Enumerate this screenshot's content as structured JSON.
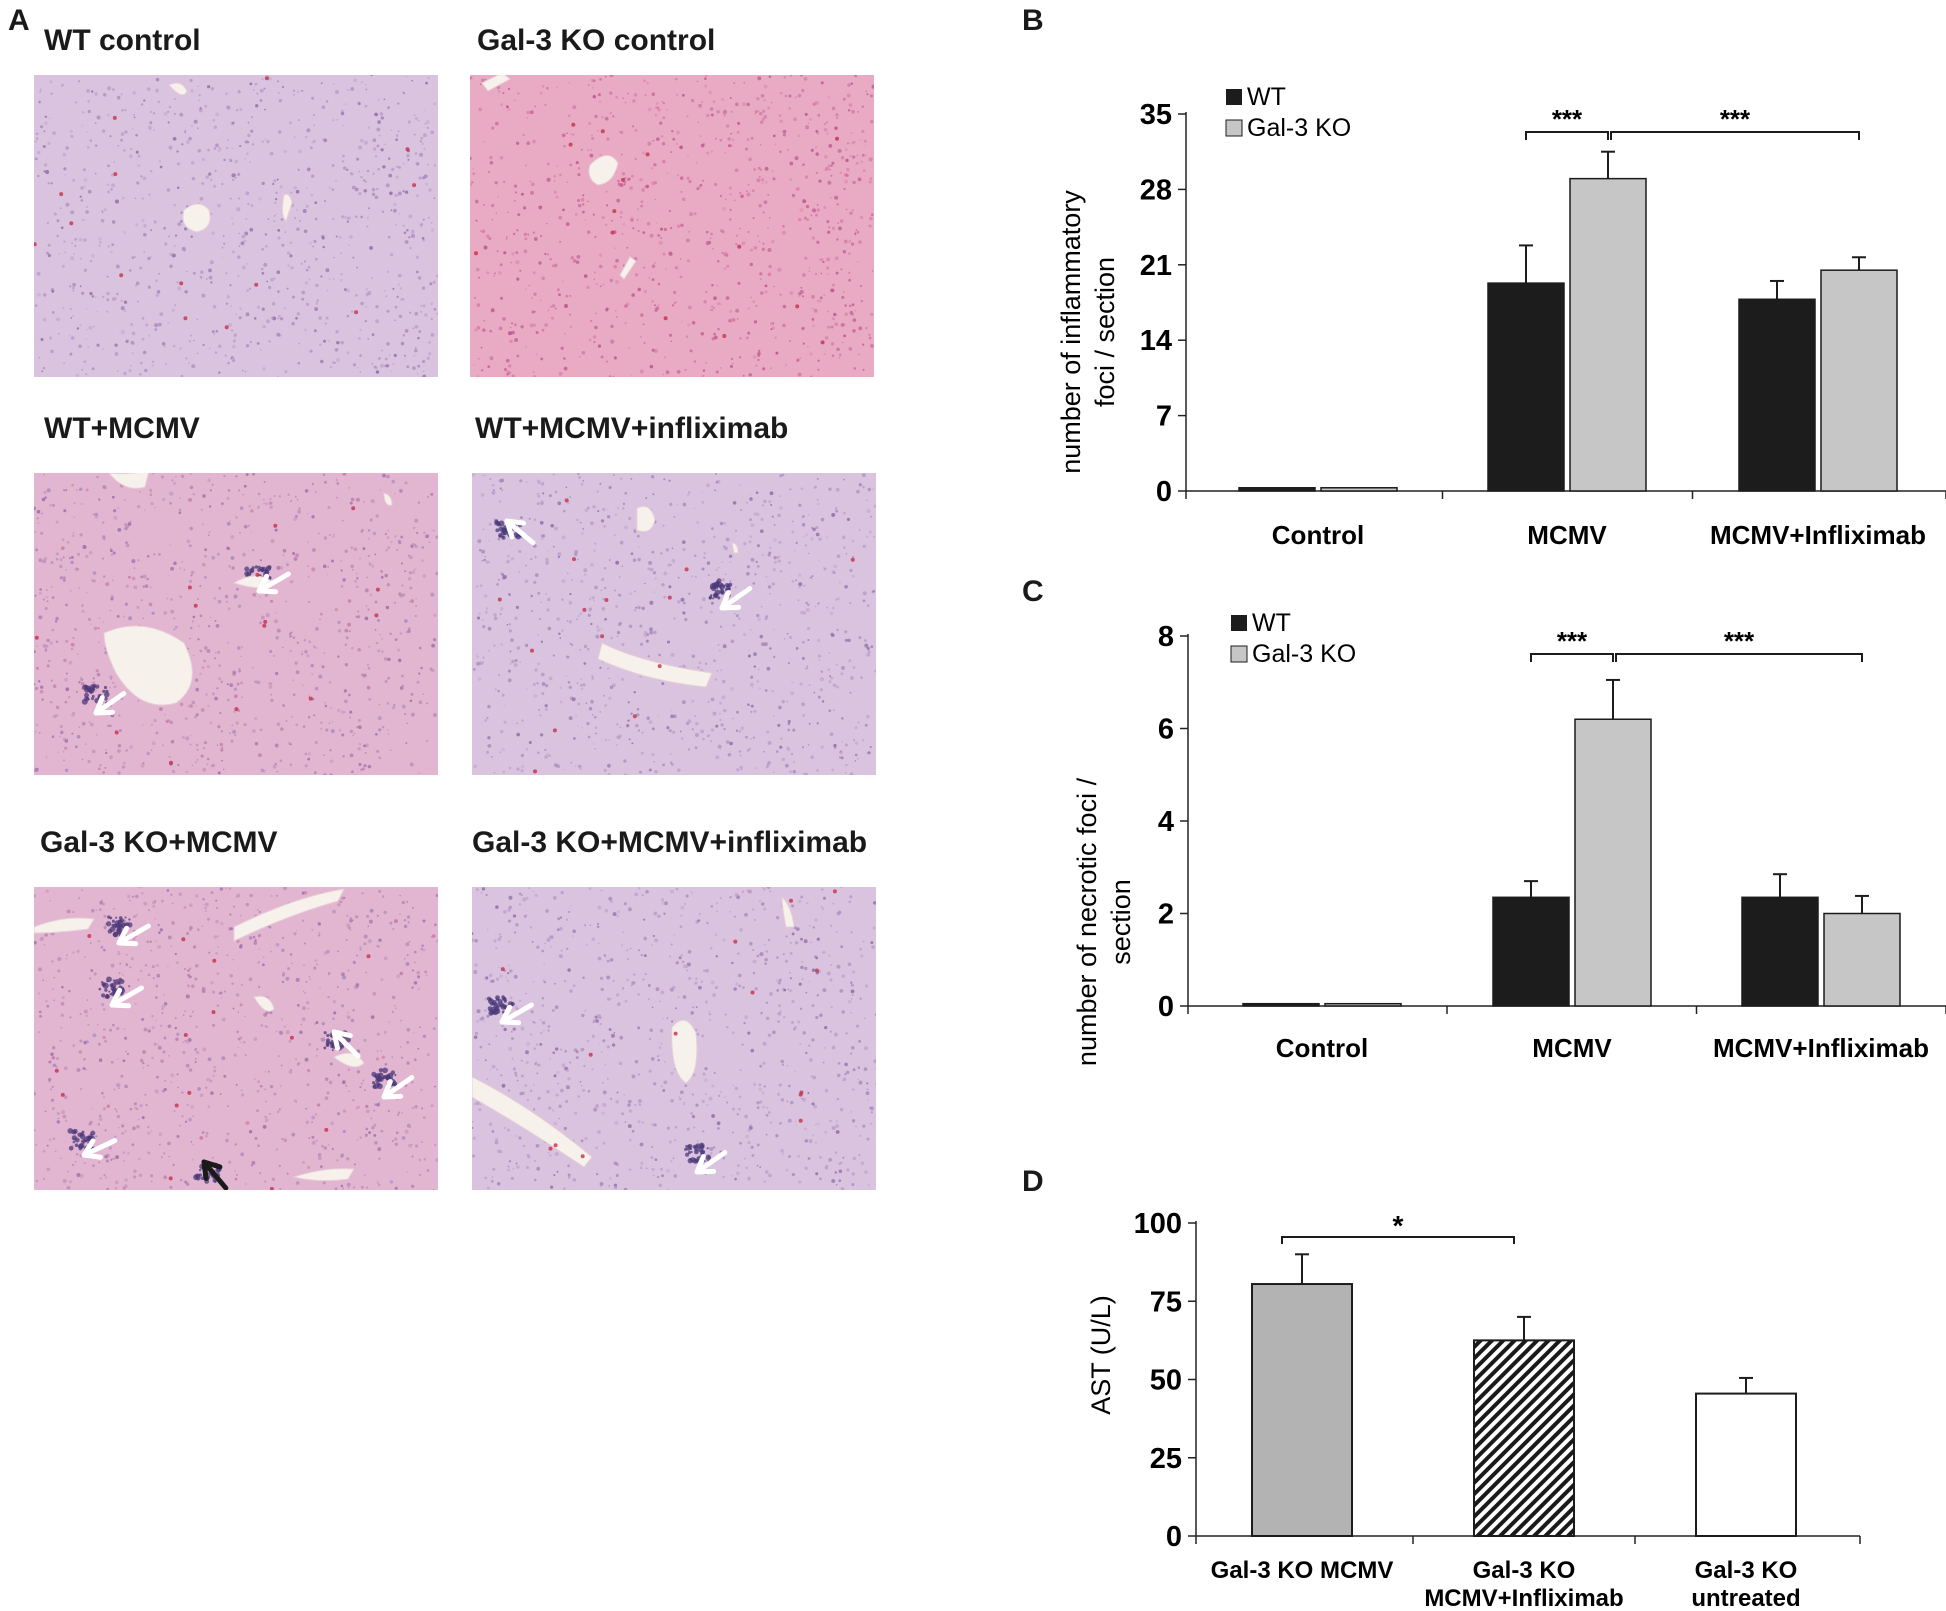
{
  "panels": {
    "A": {
      "letter": "A",
      "images": [
        {
          "title": "WT control",
          "style": "lilac"
        },
        {
          "title": "Gal-3 KO control",
          "style": "pink"
        },
        {
          "title": "WT+MCMV",
          "style": "mixed",
          "white_arrows": 2
        },
        {
          "title": "WT+MCMV+infliximab",
          "style": "lilac",
          "white_arrows": 2
        },
        {
          "title": "Gal-3 KO+MCMV",
          "style": "mixed",
          "white_arrows": 6,
          "black_arrows": 1
        },
        {
          "title": "Gal-3 KO+MCMV+infliximab",
          "style": "lilac",
          "white_arrows": 2
        }
      ]
    },
    "B": {
      "letter": "B"
    },
    "C": {
      "letter": "C"
    },
    "D": {
      "letter": "D"
    }
  },
  "chart_data": [
    {
      "panel": "B",
      "type": "bar",
      "categories": [
        "Control",
        "MCMV",
        "MCMV+Infliximab"
      ],
      "series": [
        {
          "name": "WT",
          "color": "#1c1c1c",
          "values": [
            0.3,
            19.3,
            17.8
          ],
          "errors": [
            0,
            3.5,
            1.7
          ]
        },
        {
          "name": "Gal-3 KO",
          "color": "#c6c6c6",
          "values": [
            0.3,
            29.0,
            20.5
          ],
          "errors": [
            0,
            2.5,
            1.2
          ]
        }
      ],
      "ylabel": [
        "number of inflammatory",
        "foci / section"
      ],
      "ylim": [
        0,
        35
      ],
      "yticks": [
        "0",
        "7",
        "14",
        "21",
        "28",
        "35"
      ],
      "significance": [
        {
          "label": "***",
          "from": "MCMV WT",
          "to": "MCMV Gal-3 KO"
        },
        {
          "label": "***",
          "from": "MCMV Gal-3 KO",
          "to": "MCMV+Infliximab Gal-3 KO"
        }
      ],
      "legend": "top-left"
    },
    {
      "panel": "C",
      "type": "bar",
      "categories": [
        "Control",
        "MCMV",
        "MCMV+Infliximab"
      ],
      "series": [
        {
          "name": "WT",
          "color": "#1c1c1c",
          "values": [
            0.05,
            2.35,
            2.35
          ],
          "errors": [
            0,
            0.35,
            0.5
          ]
        },
        {
          "name": "Gal-3 KO",
          "color": "#c6c6c6",
          "values": [
            0.05,
            6.2,
            2.0
          ],
          "errors": [
            0,
            0.85,
            0.38
          ]
        }
      ],
      "ylabel": [
        "number of necrotic foci /",
        "section"
      ],
      "ylim": [
        0,
        8
      ],
      "yticks": [
        "0",
        "2",
        "4",
        "6",
        "8"
      ],
      "significance": [
        {
          "label": "***",
          "from": "MCMV WT",
          "to": "MCMV Gal-3 KO"
        },
        {
          "label": "***",
          "from": "MCMV Gal-3 KO",
          "to": "MCMV+Infliximab Gal-3 KO"
        }
      ],
      "legend": "top-left"
    },
    {
      "panel": "D",
      "type": "bar",
      "categories": [
        [
          "Gal-3 KO MCMV"
        ],
        [
          "Gal-3 KO",
          "MCMV+Infliximab"
        ],
        [
          "Gal-3 KO",
          "untreated"
        ]
      ],
      "values": [
        80.5,
        62.5,
        45.5
      ],
      "errors": [
        9.5,
        7.5,
        5
      ],
      "fills": [
        "solid-gray",
        "hatched",
        "white"
      ],
      "ylabel": "AST (U/L)",
      "ylim": [
        0,
        100
      ],
      "yticks": [
        "0",
        "25",
        "50",
        "75",
        "100"
      ],
      "significance": [
        {
          "label": "*",
          "from": "Gal-3 KO MCMV",
          "to": "Gal-3 KO MCMV+Infliximab"
        }
      ]
    }
  ]
}
